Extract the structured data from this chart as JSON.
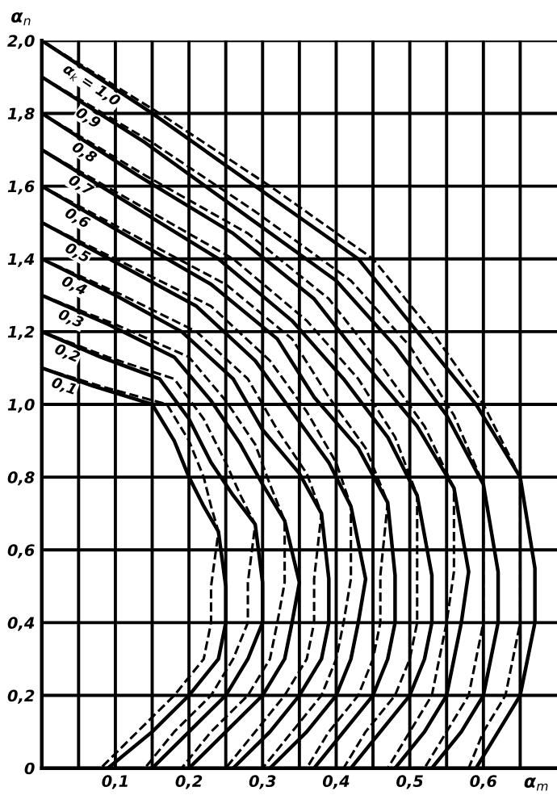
{
  "chart_data": {
    "type": "line",
    "xlabel": "α$_{m}$",
    "ylabel": "α$_{n}$",
    "xlim": [
      0,
      0.7
    ],
    "ylim": [
      0,
      2.0
    ],
    "xticks": [
      {
        "value": 0.05,
        "label": null
      },
      {
        "value": 0.1,
        "label": "0,1"
      },
      {
        "value": 0.15,
        "label": null
      },
      {
        "value": 0.2,
        "label": "0,2"
      },
      {
        "value": 0.25,
        "label": null
      },
      {
        "value": 0.3,
        "label": "0,3"
      },
      {
        "value": 0.35,
        "label": null
      },
      {
        "value": 0.4,
        "label": "0,4"
      },
      {
        "value": 0.45,
        "label": null
      },
      {
        "value": 0.5,
        "label": "0,5"
      },
      {
        "value": 0.55,
        "label": null
      },
      {
        "value": 0.6,
        "label": "0,6"
      },
      {
        "value": 0.65,
        "label": null
      }
    ],
    "yticks": [
      0,
      {
        "value": 0.2,
        "label": "0,2"
      },
      {
        "value": 0.4,
        "label": "0,4"
      },
      {
        "value": 0.6,
        "label": "0,6"
      },
      {
        "value": 0.8,
        "label": "0,8"
      },
      {
        "value": 1.0,
        "label": "1,0"
      },
      {
        "value": 1.2,
        "label": "1,2"
      },
      {
        "value": 1.4,
        "label": "1,4"
      },
      {
        "value": 1.6,
        "label": "1,6"
      },
      {
        "value": 1.8,
        "label": "1,8"
      },
      {
        "value": 2.0,
        "label": "2,0"
      }
    ],
    "grid": true,
    "legend": false,
    "series": [
      {
        "name": "0,1",
        "color": "#000000",
        "line_style": "solid",
        "x": [
          0,
          0.07,
          0.15,
          0.18,
          0.2,
          0.22,
          0.24,
          0.25,
          0.25,
          0.24,
          0.2,
          0.15,
          0.09
        ],
        "values": [
          1.1,
          1.05,
          1.0,
          0.9,
          0.8,
          0.72,
          0.65,
          0.5,
          0.4,
          0.3,
          0.2,
          0.1,
          0
        ]
      },
      {
        "name": "0,2",
        "color": "#000000",
        "line_style": "solid",
        "x": [
          0,
          0.08,
          0.16,
          0.2,
          0.23,
          0.26,
          0.29,
          0.3,
          0.3,
          0.28,
          0.25,
          0.2,
          0.15
        ],
        "values": [
          1.2,
          1.13,
          1.07,
          0.96,
          0.84,
          0.75,
          0.67,
          0.51,
          0.4,
          0.3,
          0.2,
          0.1,
          0
        ]
      },
      {
        "name": "0,3",
        "color": "#000000",
        "line_style": "solid",
        "x": [
          0,
          0.09,
          0.18,
          0.23,
          0.27,
          0.3,
          0.33,
          0.35,
          0.34,
          0.33,
          0.3,
          0.25,
          0.2
        ],
        "values": [
          1.3,
          1.22,
          1.13,
          1.01,
          0.89,
          0.78,
          0.68,
          0.51,
          0.4,
          0.3,
          0.2,
          0.1,
          0
        ]
      },
      {
        "name": "0,4",
        "color": "#000000",
        "line_style": "solid",
        "x": [
          0,
          0.1,
          0.19,
          0.26,
          0.3,
          0.35,
          0.38,
          0.39,
          0.39,
          0.38,
          0.35,
          0.31,
          0.26
        ],
        "values": [
          1.4,
          1.3,
          1.2,
          1.07,
          0.93,
          0.81,
          0.7,
          0.52,
          0.4,
          0.3,
          0.2,
          0.1,
          0
        ]
      },
      {
        "name": "0,5",
        "color": "#000000",
        "line_style": "solid",
        "x": [
          0,
          0.11,
          0.21,
          0.29,
          0.34,
          0.39,
          0.42,
          0.44,
          0.43,
          0.42,
          0.4,
          0.36,
          0.31
        ],
        "values": [
          1.5,
          1.38,
          1.27,
          1.12,
          0.98,
          0.84,
          0.72,
          0.52,
          0.4,
          0.3,
          0.2,
          0.1,
          0
        ]
      },
      {
        "name": "0,6",
        "color": "#000000",
        "line_style": "solid",
        "x": [
          0,
          0.11,
          0.23,
          0.32,
          0.37,
          0.43,
          0.47,
          0.48,
          0.48,
          0.47,
          0.45,
          0.41,
          0.37
        ],
        "values": [
          1.6,
          1.47,
          1.33,
          1.18,
          1.02,
          0.88,
          0.73,
          0.53,
          0.4,
          0.3,
          0.2,
          0.1,
          0
        ]
      },
      {
        "name": "0,7",
        "color": "#000000",
        "line_style": "solid",
        "x": [
          0,
          0.12,
          0.24,
          0.34,
          0.41,
          0.47,
          0.51,
          0.53,
          0.53,
          0.52,
          0.5,
          0.46,
          0.42
        ],
        "values": [
          1.7,
          1.55,
          1.4,
          1.23,
          1.07,
          0.91,
          0.75,
          0.53,
          0.4,
          0.3,
          0.2,
          0.1,
          0
        ]
      },
      {
        "name": "0,8",
        "color": "#000000",
        "line_style": "solid",
        "x": [
          0,
          0.13,
          0.26,
          0.37,
          0.44,
          0.51,
          0.56,
          0.58,
          0.57,
          0.56,
          0.55,
          0.52,
          0.48
        ],
        "values": [
          1.8,
          1.63,
          1.47,
          1.29,
          1.11,
          0.94,
          0.77,
          0.54,
          0.4,
          0.3,
          0.2,
          0.1,
          0
        ]
      },
      {
        "name": "0,9",
        "color": "#000000",
        "line_style": "solid",
        "x": [
          0,
          0.14,
          0.27,
          0.4,
          0.48,
          0.55,
          0.6,
          0.62,
          0.62,
          0.61,
          0.6,
          0.57,
          0.53
        ],
        "values": [
          1.9,
          1.72,
          1.53,
          1.34,
          1.16,
          0.97,
          0.78,
          0.54,
          0.4,
          0.3,
          0.2,
          0.1,
          0
        ]
      },
      {
        "name": "α$_{k}$ = 1,0",
        "color": "#000000",
        "line_style": "solid",
        "x": [
          0,
          0.15,
          0.29,
          0.43,
          0.51,
          0.59,
          0.65,
          0.67,
          0.67,
          0.66,
          0.65,
          0.62,
          0.59
        ],
        "values": [
          2.0,
          1.8,
          1.6,
          1.4,
          1.2,
          1.0,
          0.8,
          0.55,
          0.4,
          0.3,
          0.2,
          0.1,
          0
        ]
      },
      {
        "color": "#000000",
        "line_style": "dashed",
        "x": [
          0,
          0.08,
          0.17,
          0.2,
          0.22,
          0.23,
          0.24,
          0.23,
          0.23,
          0.22,
          0.18,
          0.13,
          0.08
        ],
        "values": [
          1.1,
          1.05,
          1.0,
          0.9,
          0.8,
          0.72,
          0.65,
          0.5,
          0.4,
          0.3,
          0.2,
          0.1,
          0
        ]
      },
      {
        "color": "#000000",
        "line_style": "dashed",
        "x": [
          0,
          0.09,
          0.18,
          0.22,
          0.25,
          0.27,
          0.29,
          0.28,
          0.28,
          0.26,
          0.23,
          0.18,
          0.14
        ],
        "values": [
          1.2,
          1.13,
          1.07,
          0.96,
          0.84,
          0.75,
          0.67,
          0.51,
          0.4,
          0.3,
          0.2,
          0.1,
          0
        ]
      },
      {
        "color": "#000000",
        "line_style": "dashed",
        "x": [
          0,
          0.1,
          0.2,
          0.25,
          0.29,
          0.31,
          0.33,
          0.33,
          0.32,
          0.31,
          0.28,
          0.23,
          0.19
        ],
        "values": [
          1.3,
          1.22,
          1.13,
          1.01,
          0.89,
          0.78,
          0.68,
          0.51,
          0.4,
          0.3,
          0.2,
          0.1,
          0
        ]
      },
      {
        "color": "#000000",
        "line_style": "dashed",
        "x": [
          0,
          0.11,
          0.21,
          0.28,
          0.32,
          0.36,
          0.38,
          0.37,
          0.37,
          0.36,
          0.33,
          0.29,
          0.25
        ],
        "values": [
          1.4,
          1.3,
          1.2,
          1.07,
          0.93,
          0.81,
          0.7,
          0.52,
          0.4,
          0.3,
          0.2,
          0.1,
          0
        ]
      },
      {
        "color": "#000000",
        "line_style": "dashed",
        "x": [
          0,
          0.12,
          0.23,
          0.31,
          0.36,
          0.4,
          0.42,
          0.42,
          0.41,
          0.4,
          0.38,
          0.34,
          0.3
        ],
        "values": [
          1.5,
          1.38,
          1.27,
          1.12,
          0.98,
          0.84,
          0.72,
          0.52,
          0.4,
          0.3,
          0.2,
          0.1,
          0
        ]
      },
      {
        "color": "#000000",
        "line_style": "dashed",
        "x": [
          0,
          0.12,
          0.25,
          0.34,
          0.39,
          0.44,
          0.47,
          0.46,
          0.46,
          0.45,
          0.43,
          0.39,
          0.36
        ],
        "values": [
          1.6,
          1.47,
          1.33,
          1.18,
          1.02,
          0.88,
          0.73,
          0.53,
          0.4,
          0.3,
          0.2,
          0.1,
          0
        ]
      },
      {
        "color": "#000000",
        "line_style": "dashed",
        "x": [
          0,
          0.13,
          0.26,
          0.36,
          0.43,
          0.48,
          0.51,
          0.51,
          0.51,
          0.5,
          0.48,
          0.44,
          0.41
        ],
        "values": [
          1.7,
          1.55,
          1.4,
          1.23,
          1.07,
          0.91,
          0.75,
          0.53,
          0.4,
          0.3,
          0.2,
          0.1,
          0
        ]
      },
      {
        "color": "#000000",
        "line_style": "dashed",
        "x": [
          0,
          0.14,
          0.28,
          0.39,
          0.46,
          0.52,
          0.56,
          0.56,
          0.55,
          0.54,
          0.53,
          0.5,
          0.47
        ],
        "values": [
          1.8,
          1.63,
          1.47,
          1.29,
          1.11,
          0.94,
          0.77,
          0.54,
          0.4,
          0.3,
          0.2,
          0.1,
          0
        ]
      },
      {
        "color": "#000000",
        "line_style": "dashed",
        "x": [
          0,
          0.15,
          0.29,
          0.42,
          0.5,
          0.56,
          0.6,
          0.6,
          0.6,
          0.59,
          0.58,
          0.55,
          0.52
        ],
        "values": [
          1.9,
          1.72,
          1.53,
          1.34,
          1.16,
          0.97,
          0.78,
          0.54,
          0.4,
          0.3,
          0.2,
          0.1,
          0
        ]
      },
      {
        "color": "#000000",
        "line_style": "dashed",
        "x": [
          0,
          0.16,
          0.31,
          0.45,
          0.53,
          0.6,
          0.65,
          0.65,
          0.65,
          0.64,
          0.63,
          0.6,
          0.58
        ],
        "values": [
          2.0,
          1.8,
          1.6,
          1.4,
          1.2,
          1.0,
          0.8,
          0.55,
          0.4,
          0.3,
          0.2,
          0.1,
          0
        ]
      }
    ]
  }
}
